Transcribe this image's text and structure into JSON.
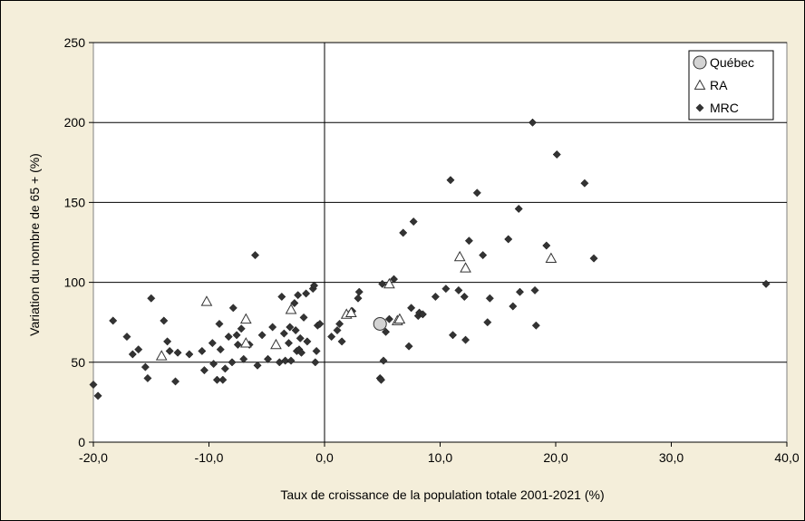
{
  "chart_data": {
    "type": "scatter",
    "title": "",
    "xlabel": "Taux de croissance de la population totale 2001-2021 (%)",
    "ylabel": "Variation du nombre de 65 + (%)",
    "xlim": [
      -20,
      40
    ],
    "ylim": [
      0,
      250
    ],
    "x_ticks": [
      -20,
      -10,
      0,
      10,
      20,
      30,
      40
    ],
    "x_tick_labels": [
      "-20,0",
      "-10,0",
      "0,0",
      "10,0",
      "20,0",
      "30,0",
      "40,0"
    ],
    "y_ticks": [
      0,
      50,
      100,
      150,
      200,
      250
    ],
    "y_tick_labels": [
      "0",
      "50",
      "100",
      "150",
      "200",
      "250"
    ],
    "grid": "horizontal",
    "legend_position": "top-right",
    "colors": {
      "background": "#f4eeda",
      "plot_area": "#ffffff",
      "mrc": "#333333",
      "quebec": "#d3d3d3",
      "ra": "#ffffff"
    },
    "series": [
      {
        "name": "Québec",
        "marker": "circle",
        "points": [
          [
            4.8,
            74
          ]
        ]
      },
      {
        "name": "RA",
        "marker": "triangle",
        "points": [
          [
            -14.1,
            54
          ],
          [
            -10.2,
            88
          ],
          [
            -6.8,
            77
          ],
          [
            -6.8,
            62
          ],
          [
            -4.2,
            61
          ],
          [
            -2.9,
            83
          ],
          [
            1.9,
            80
          ],
          [
            2.3,
            81
          ],
          [
            5.6,
            99
          ],
          [
            6.3,
            76
          ],
          [
            6.5,
            77
          ],
          [
            11.7,
            116
          ],
          [
            12.2,
            109
          ],
          [
            19.6,
            115
          ]
        ]
      },
      {
        "name": "MRC",
        "marker": "diamond",
        "points": [
          [
            -20.0,
            36
          ],
          [
            -19.6,
            29
          ],
          [
            -18.3,
            76
          ],
          [
            -17.1,
            66
          ],
          [
            -16.6,
            55
          ],
          [
            -16.1,
            58
          ],
          [
            -15.5,
            47
          ],
          [
            -15.3,
            40
          ],
          [
            -15.0,
            90
          ],
          [
            -13.9,
            76
          ],
          [
            -13.6,
            63
          ],
          [
            -13.4,
            57
          ],
          [
            -12.9,
            38
          ],
          [
            -12.7,
            56
          ],
          [
            -11.7,
            55
          ],
          [
            -10.6,
            57
          ],
          [
            -10.4,
            45
          ],
          [
            -9.7,
            62
          ],
          [
            -9.6,
            49
          ],
          [
            -9.3,
            39
          ],
          [
            -9.1,
            74
          ],
          [
            -9.0,
            58
          ],
          [
            -8.8,
            39
          ],
          [
            -8.6,
            46
          ],
          [
            -8.3,
            66
          ],
          [
            -8.0,
            50
          ],
          [
            -7.9,
            84
          ],
          [
            -7.6,
            67
          ],
          [
            -7.5,
            61
          ],
          [
            -7.2,
            71
          ],
          [
            -7.0,
            52
          ],
          [
            -6.5,
            61
          ],
          [
            -6.0,
            117
          ],
          [
            -5.8,
            48
          ],
          [
            -5.4,
            67
          ],
          [
            -4.9,
            52
          ],
          [
            -4.5,
            72
          ],
          [
            -3.9,
            50
          ],
          [
            -3.7,
            91
          ],
          [
            -3.5,
            68
          ],
          [
            -3.4,
            51
          ],
          [
            -3.1,
            62
          ],
          [
            -3.0,
            72
          ],
          [
            -2.9,
            51
          ],
          [
            -2.6,
            87
          ],
          [
            -2.5,
            70
          ],
          [
            -2.4,
            57
          ],
          [
            -2.3,
            92
          ],
          [
            -2.2,
            58
          ],
          [
            -2.1,
            65
          ],
          [
            -2.0,
            56
          ],
          [
            -1.8,
            78
          ],
          [
            -1.6,
            93
          ],
          [
            -1.5,
            63
          ],
          [
            -1.0,
            96
          ],
          [
            -0.9,
            98
          ],
          [
            -0.8,
            50
          ],
          [
            -0.7,
            57
          ],
          [
            -0.6,
            73
          ],
          [
            -0.4,
            74
          ],
          [
            0.6,
            66
          ],
          [
            1.1,
            70
          ],
          [
            1.3,
            74
          ],
          [
            1.5,
            63
          ],
          [
            2.4,
            82
          ],
          [
            2.9,
            90
          ],
          [
            3.0,
            94
          ],
          [
            4.8,
            40
          ],
          [
            4.9,
            39
          ],
          [
            5.0,
            99
          ],
          [
            5.1,
            51
          ],
          [
            5.3,
            69
          ],
          [
            5.6,
            77
          ],
          [
            6.0,
            102
          ],
          [
            6.8,
            131
          ],
          [
            7.3,
            60
          ],
          [
            7.5,
            84
          ],
          [
            7.7,
            138
          ],
          [
            8.1,
            79
          ],
          [
            8.2,
            81
          ],
          [
            8.5,
            80
          ],
          [
            9.6,
            91
          ],
          [
            10.5,
            96
          ],
          [
            10.9,
            164
          ],
          [
            11.1,
            67
          ],
          [
            11.6,
            95
          ],
          [
            12.1,
            91
          ],
          [
            12.2,
            64
          ],
          [
            12.5,
            126
          ],
          [
            13.2,
            156
          ],
          [
            13.7,
            117
          ],
          [
            14.1,
            75
          ],
          [
            14.3,
            90
          ],
          [
            15.9,
            127
          ],
          [
            16.3,
            85
          ],
          [
            16.8,
            146
          ],
          [
            16.9,
            94
          ],
          [
            18.0,
            200
          ],
          [
            18.2,
            95
          ],
          [
            18.3,
            73
          ],
          [
            19.2,
            123
          ],
          [
            20.1,
            180
          ],
          [
            22.5,
            162
          ],
          [
            23.3,
            115
          ],
          [
            38.2,
            99
          ]
        ]
      }
    ]
  }
}
